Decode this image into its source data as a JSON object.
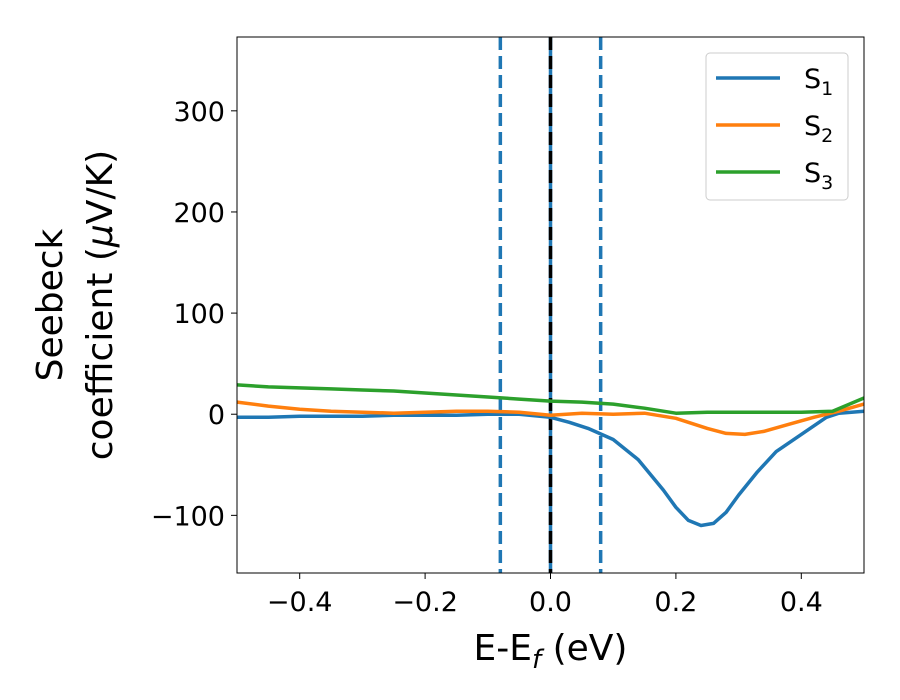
{
  "chart_data": {
    "type": "line",
    "xlabel": "E-E",
    "xlabel_subscript": "f",
    "xlabel_unit": " (eV)",
    "ylabel_line1": "Seebeck",
    "ylabel_line2_prefix": "coefficient  (",
    "ylabel_mu": "μ",
    "ylabel_line2_suffix": "V/K)",
    "xlim": [
      -0.5,
      0.5
    ],
    "ylim": [
      -157,
      373
    ],
    "xticks": [
      -0.4,
      -0.2,
      0.0,
      0.2,
      0.4
    ],
    "xtick_labels": [
      "−0.4",
      "−0.2",
      "0.0",
      "0.2",
      "0.4"
    ],
    "yticks": [
      -100,
      0,
      100,
      200,
      300
    ],
    "ytick_labels": [
      "−100",
      "0",
      "100",
      "200",
      "300"
    ],
    "legend_position": "top-right",
    "grid": false,
    "vlines": [
      {
        "x": -0.08,
        "style": "dashed",
        "color": "#1f77b4"
      },
      {
        "x": 0.0,
        "style": "solid",
        "color": "#1f77b4"
      },
      {
        "x": 0.0,
        "style": "dashed",
        "color": "#000000"
      },
      {
        "x": 0.08,
        "style": "dashed",
        "color": "#1f77b4"
      }
    ],
    "series": [
      {
        "name": "S",
        "subscript": "1",
        "color": "#1f77b4",
        "x": [
          -0.5,
          -0.45,
          -0.4,
          -0.35,
          -0.3,
          -0.25,
          -0.2,
          -0.15,
          -0.1,
          -0.05,
          0.0,
          0.03,
          0.06,
          0.1,
          0.14,
          0.18,
          0.2,
          0.22,
          0.24,
          0.26,
          0.28,
          0.3,
          0.33,
          0.36,
          0.4,
          0.44,
          0.46,
          0.48,
          0.5
        ],
        "y": [
          -3,
          -3,
          -2,
          -2,
          -2,
          -1,
          -1,
          -1,
          0,
          0,
          -3,
          -8,
          -14,
          -25,
          -45,
          -75,
          -92,
          -105,
          -110,
          -108,
          -97,
          -80,
          -57,
          -37,
          -20,
          -3,
          1,
          2,
          3
        ]
      },
      {
        "name": "S",
        "subscript": "2",
        "color": "#ff7f0e",
        "x": [
          -0.5,
          -0.45,
          -0.4,
          -0.35,
          -0.3,
          -0.25,
          -0.2,
          -0.15,
          -0.1,
          -0.05,
          0.0,
          0.05,
          0.1,
          0.15,
          0.2,
          0.25,
          0.28,
          0.31,
          0.34,
          0.38,
          0.42,
          0.46,
          0.5
        ],
        "y": [
          12,
          8,
          5,
          3,
          2,
          1,
          2,
          3,
          3,
          2,
          -1,
          1,
          0,
          1,
          -4,
          -14,
          -19,
          -20,
          -17,
          -10,
          -3,
          3,
          10
        ]
      },
      {
        "name": "S",
        "subscript": "3",
        "color": "#2ca02c",
        "x": [
          -0.5,
          -0.45,
          -0.4,
          -0.35,
          -0.3,
          -0.25,
          -0.2,
          -0.15,
          -0.1,
          -0.05,
          0.0,
          0.05,
          0.1,
          0.15,
          0.2,
          0.25,
          0.3,
          0.35,
          0.4,
          0.45,
          0.5
        ],
        "y": [
          29,
          27,
          26,
          25,
          24,
          23,
          21,
          19,
          17,
          15,
          13,
          12,
          10,
          6,
          1,
          2,
          2,
          2,
          2,
          3,
          16
        ]
      }
    ]
  }
}
